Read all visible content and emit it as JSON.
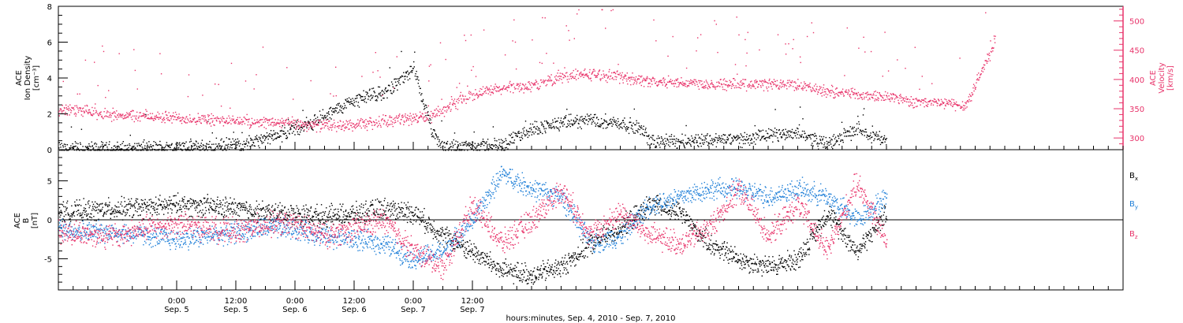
{
  "chart_data": [
    {
      "type": "scatter",
      "panel": "top",
      "ylabel_left": [
        "ACE",
        "Ion Density",
        "[cm⁻³]"
      ],
      "ylabel_right": [
        "ACE",
        "Velocity",
        "[km/s]"
      ],
      "left_axis": {
        "range": [
          0,
          8
        ],
        "ticks": [
          0,
          2,
          4,
          6,
          8
        ]
      },
      "right_axis": {
        "range": [
          280,
          525
        ],
        "ticks": [
          300,
          350,
          400,
          450,
          500
        ]
      },
      "colors": {
        "density": "#000000",
        "velocity": "#e8336a"
      },
      "series": [
        {
          "axis": "left",
          "color": "#000000",
          "x_hours": [
            0,
            6,
            12,
            18,
            24,
            30,
            36,
            42,
            44,
            48,
            51,
            54,
            56,
            60,
            66,
            72,
            76,
            78,
            84,
            90,
            96,
            102,
            108,
            114,
            118,
            120,
            126,
            132,
            138,
            144,
            150,
            156,
            162,
            168
          ],
          "values": [
            0.05,
            0.05,
            0.08,
            0.12,
            0.15,
            0.2,
            0.3,
            0.6,
            0.8,
            1.2,
            1.5,
            1.8,
            2.2,
            2.8,
            3.2,
            4.5,
            0.8,
            0.2,
            0.25,
            0.3,
            1.2,
            1.5,
            1.7,
            1.5,
            1.2,
            0.5,
            0.5,
            0.6,
            0.6,
            0.8,
            1.0,
            0.3,
            1.2,
            0.5
          ]
        },
        {
          "axis": "right",
          "color": "#e8336a",
          "x_hours": [
            0,
            6,
            12,
            18,
            24,
            30,
            36,
            42,
            48,
            54,
            60,
            66,
            72,
            76,
            80,
            84,
            90,
            96,
            102,
            108,
            114,
            120,
            126,
            132,
            138,
            144,
            150,
            156,
            160,
            162,
            166,
            170,
            174,
            180,
            184,
            190
          ],
          "values": [
            350,
            345,
            340,
            338,
            335,
            332,
            330,
            328,
            325,
            322,
            322,
            330,
            335,
            338,
            358,
            375,
            385,
            390,
            405,
            410,
            405,
            398,
            396,
            393,
            392,
            393,
            392,
            380,
            380,
            375,
            372,
            370,
            362,
            360,
            356,
            465
          ]
        }
      ]
    },
    {
      "type": "scatter",
      "panel": "bottom",
      "ylabel": [
        "ACE",
        "B",
        "[nT]"
      ],
      "y_axis": {
        "range": [
          -9,
          9
        ],
        "ticks": [
          -5,
          0,
          5
        ]
      },
      "colors": {
        "bx": "#000000",
        "by": "#1e7fd8",
        "bz": "#e8336a"
      },
      "series": [
        {
          "name": "Bx",
          "color": "#000000",
          "x_hours": [
            0,
            6,
            12,
            18,
            24,
            30,
            36,
            42,
            48,
            54,
            60,
            66,
            72,
            78,
            84,
            90,
            96,
            102,
            108,
            114,
            120,
            126,
            132,
            138,
            144,
            150,
            156,
            162,
            168
          ],
          "values": [
            1,
            1.2,
            1.5,
            1.6,
            2,
            1.8,
            1.5,
            1.0,
            0.8,
            0.5,
            0.8,
            1.5,
            1.0,
            -2,
            -4,
            -6.5,
            -7,
            -6,
            -3,
            -1,
            2,
            1,
            -3,
            -5,
            -6,
            -5,
            1,
            -4,
            1
          ]
        },
        {
          "name": "By",
          "color": "#1e7fd8",
          "x_hours": [
            0,
            6,
            12,
            18,
            24,
            30,
            36,
            42,
            48,
            54,
            60,
            66,
            72,
            78,
            84,
            90,
            96,
            102,
            108,
            114,
            120,
            126,
            132,
            138,
            144,
            150,
            156,
            162,
            168
          ],
          "values": [
            -1,
            -1.5,
            -1.5,
            -2,
            -2.5,
            -2,
            -1.5,
            -1,
            -1.2,
            -2,
            -2.5,
            -3,
            -5,
            -4,
            0,
            6,
            4,
            3,
            -3,
            -2,
            2,
            3,
            4,
            4,
            3,
            4,
            3,
            0,
            3
          ]
        },
        {
          "name": "Bz",
          "color": "#e8336a",
          "x_hours": [
            0,
            6,
            12,
            18,
            24,
            30,
            36,
            42,
            48,
            54,
            60,
            66,
            72,
            78,
            84,
            90,
            96,
            102,
            108,
            114,
            120,
            126,
            132,
            138,
            144,
            150,
            156,
            162,
            168
          ],
          "values": [
            -1.5,
            -1.8,
            -2,
            -1,
            -0.5,
            -1,
            -1.5,
            -0.5,
            -0.5,
            -2,
            -1,
            0,
            -4,
            -6,
            2,
            -3,
            0,
            4,
            -2,
            1,
            -2,
            -3,
            -1,
            4,
            -2,
            2,
            -4,
            5,
            -3
          ]
        }
      ],
      "legend_labels": [
        "B",
        "B",
        "B"
      ],
      "legend_subscripts": [
        "x",
        "y",
        "z"
      ]
    }
  ],
  "x_axis": {
    "range_hours": [
      0,
      216
    ],
    "ticks": [
      {
        "hour": 24,
        "time": "0:00",
        "date": "Sep. 5"
      },
      {
        "hour": 36,
        "time": "12:00",
        "date": "Sep. 5"
      },
      {
        "hour": 48,
        "time": "0:00",
        "date": "Sep. 6"
      },
      {
        "hour": 60,
        "time": "12:00",
        "date": "Sep. 6"
      },
      {
        "hour": 72,
        "time": "0:00",
        "date": "Sep. 7"
      },
      {
        "hour": 84,
        "time": "12:00",
        "date": "Sep. 7"
      }
    ],
    "xlabel": "hours:minutes, Sep.  4, 2010 - Sep.  7, 2010"
  }
}
